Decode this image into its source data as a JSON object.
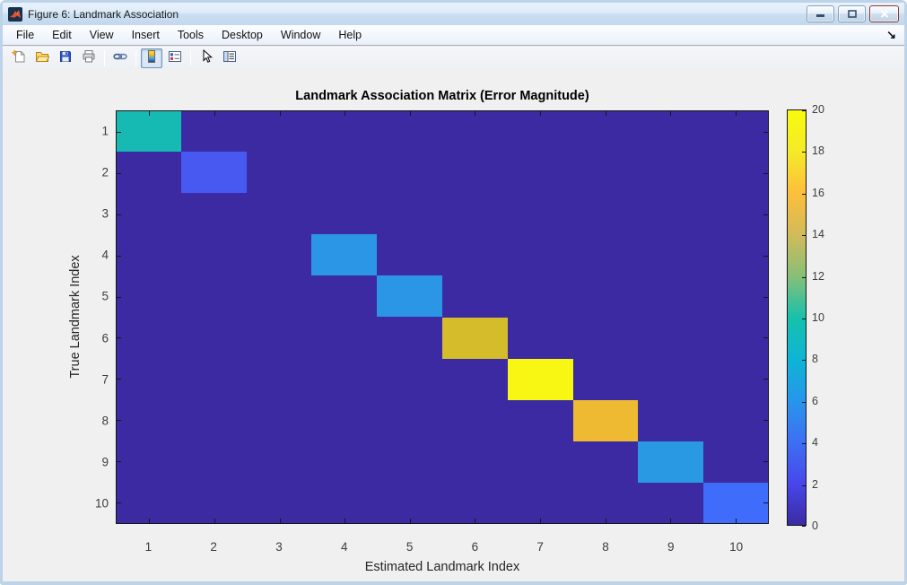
{
  "window": {
    "title": "Figure 6: Landmark Association",
    "app_icon": "matlab-figure-icon",
    "controls": [
      {
        "name": "minimize-button",
        "glyph": "minimize"
      },
      {
        "name": "restore-button",
        "glyph": "restore"
      },
      {
        "name": "close-button",
        "glyph": "close"
      }
    ]
  },
  "menu": {
    "items": [
      "File",
      "Edit",
      "View",
      "Insert",
      "Tools",
      "Desktop",
      "Window",
      "Help"
    ],
    "dock_arrow": "↘"
  },
  "toolbar": {
    "groups": [
      [
        "new-figure-icon",
        "open-file-icon",
        "save-figure-icon",
        "print-figure-icon"
      ],
      [
        "link-plot-icon"
      ],
      [
        "insert-colorbar-icon",
        "insert-legend-icon"
      ],
      [
        "edit-plot-icon",
        "property-inspector-icon"
      ]
    ],
    "active_tool": "insert-colorbar-icon"
  },
  "chart_data": {
    "type": "heatmap",
    "title": "Landmark Association Matrix (Error Magnitude)",
    "xlabel": "Estimated Landmark Index",
    "ylabel": "True Landmark Index",
    "x_ticks": [
      "1",
      "2",
      "3",
      "4",
      "5",
      "6",
      "7",
      "8",
      "9",
      "10"
    ],
    "y_ticks": [
      "1",
      "2",
      "3",
      "4",
      "5",
      "6",
      "7",
      "8",
      "9",
      "10"
    ],
    "matrix_size": [
      10,
      10
    ],
    "off_diagonal_value": 0,
    "diagonal_values": [
      9,
      3,
      0,
      6,
      6,
      14,
      20,
      16,
      6,
      4
    ],
    "clim": [
      0,
      20
    ],
    "colorbar_ticks": [
      "0",
      "2",
      "4",
      "6",
      "8",
      "10",
      "12",
      "14",
      "16",
      "18",
      "20"
    ],
    "colormap": "parula",
    "grid": false,
    "background_color": "#3b2aa2",
    "diagonal_colors": [
      "#17bab2",
      "#4759f1",
      "#3b2aa2",
      "#2b96e5",
      "#2b96e5",
      "#d4bc2a",
      "#f8f714",
      "#eeba32",
      "#2899e2",
      "#3f6cfa"
    ],
    "colormap_stops": [
      {
        "pos": 0.0,
        "color": "#3b2aa2"
      },
      {
        "pos": 0.1,
        "color": "#4747eb"
      },
      {
        "pos": 0.2,
        "color": "#3e6ff4"
      },
      {
        "pos": 0.3,
        "color": "#2796eb"
      },
      {
        "pos": 0.4,
        "color": "#0db5d5"
      },
      {
        "pos": 0.5,
        "color": "#17c1ab"
      },
      {
        "pos": 0.6,
        "color": "#87bf77"
      },
      {
        "pos": 0.7,
        "color": "#d1bb59"
      },
      {
        "pos": 0.8,
        "color": "#febe3c"
      },
      {
        "pos": 0.9,
        "color": "#f5ea28"
      },
      {
        "pos": 1.0,
        "color": "#f8fb0e"
      }
    ]
  }
}
